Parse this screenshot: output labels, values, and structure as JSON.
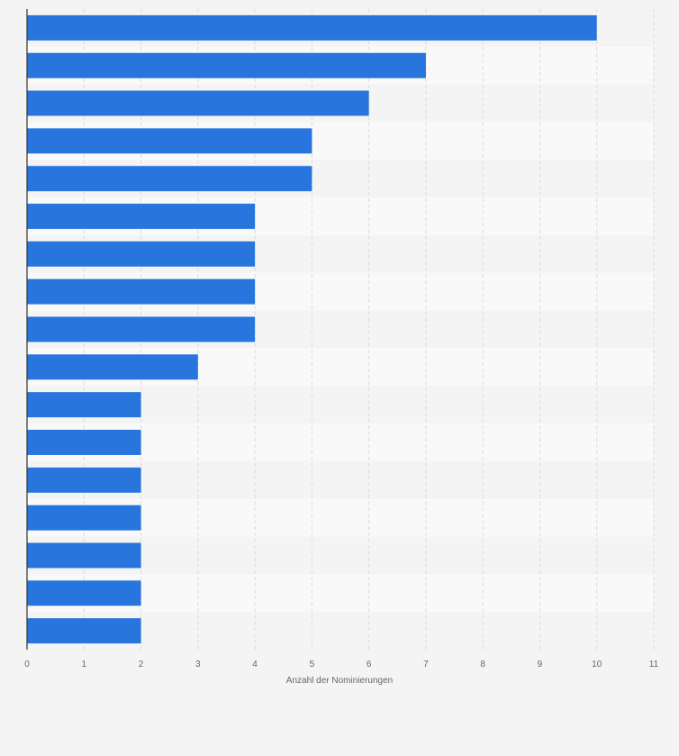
{
  "chart_data": {
    "type": "bar",
    "orientation": "horizontal",
    "values": [
      10,
      7,
      6,
      5,
      5,
      4,
      4,
      4,
      4,
      3,
      2,
      2,
      2,
      2,
      2,
      2,
      2
    ],
    "xlabel": "Anzahl der Nominierungen",
    "ylabel": "",
    "xlim": [
      0,
      11
    ],
    "xticks": [
      "0",
      "1",
      "2",
      "3",
      "4",
      "5",
      "6",
      "7",
      "8",
      "9",
      "10",
      "11"
    ],
    "grid": true,
    "bar_color": "#2876dd",
    "band_colors": [
      "#f4f4f4",
      "#f9f9f9"
    ]
  }
}
